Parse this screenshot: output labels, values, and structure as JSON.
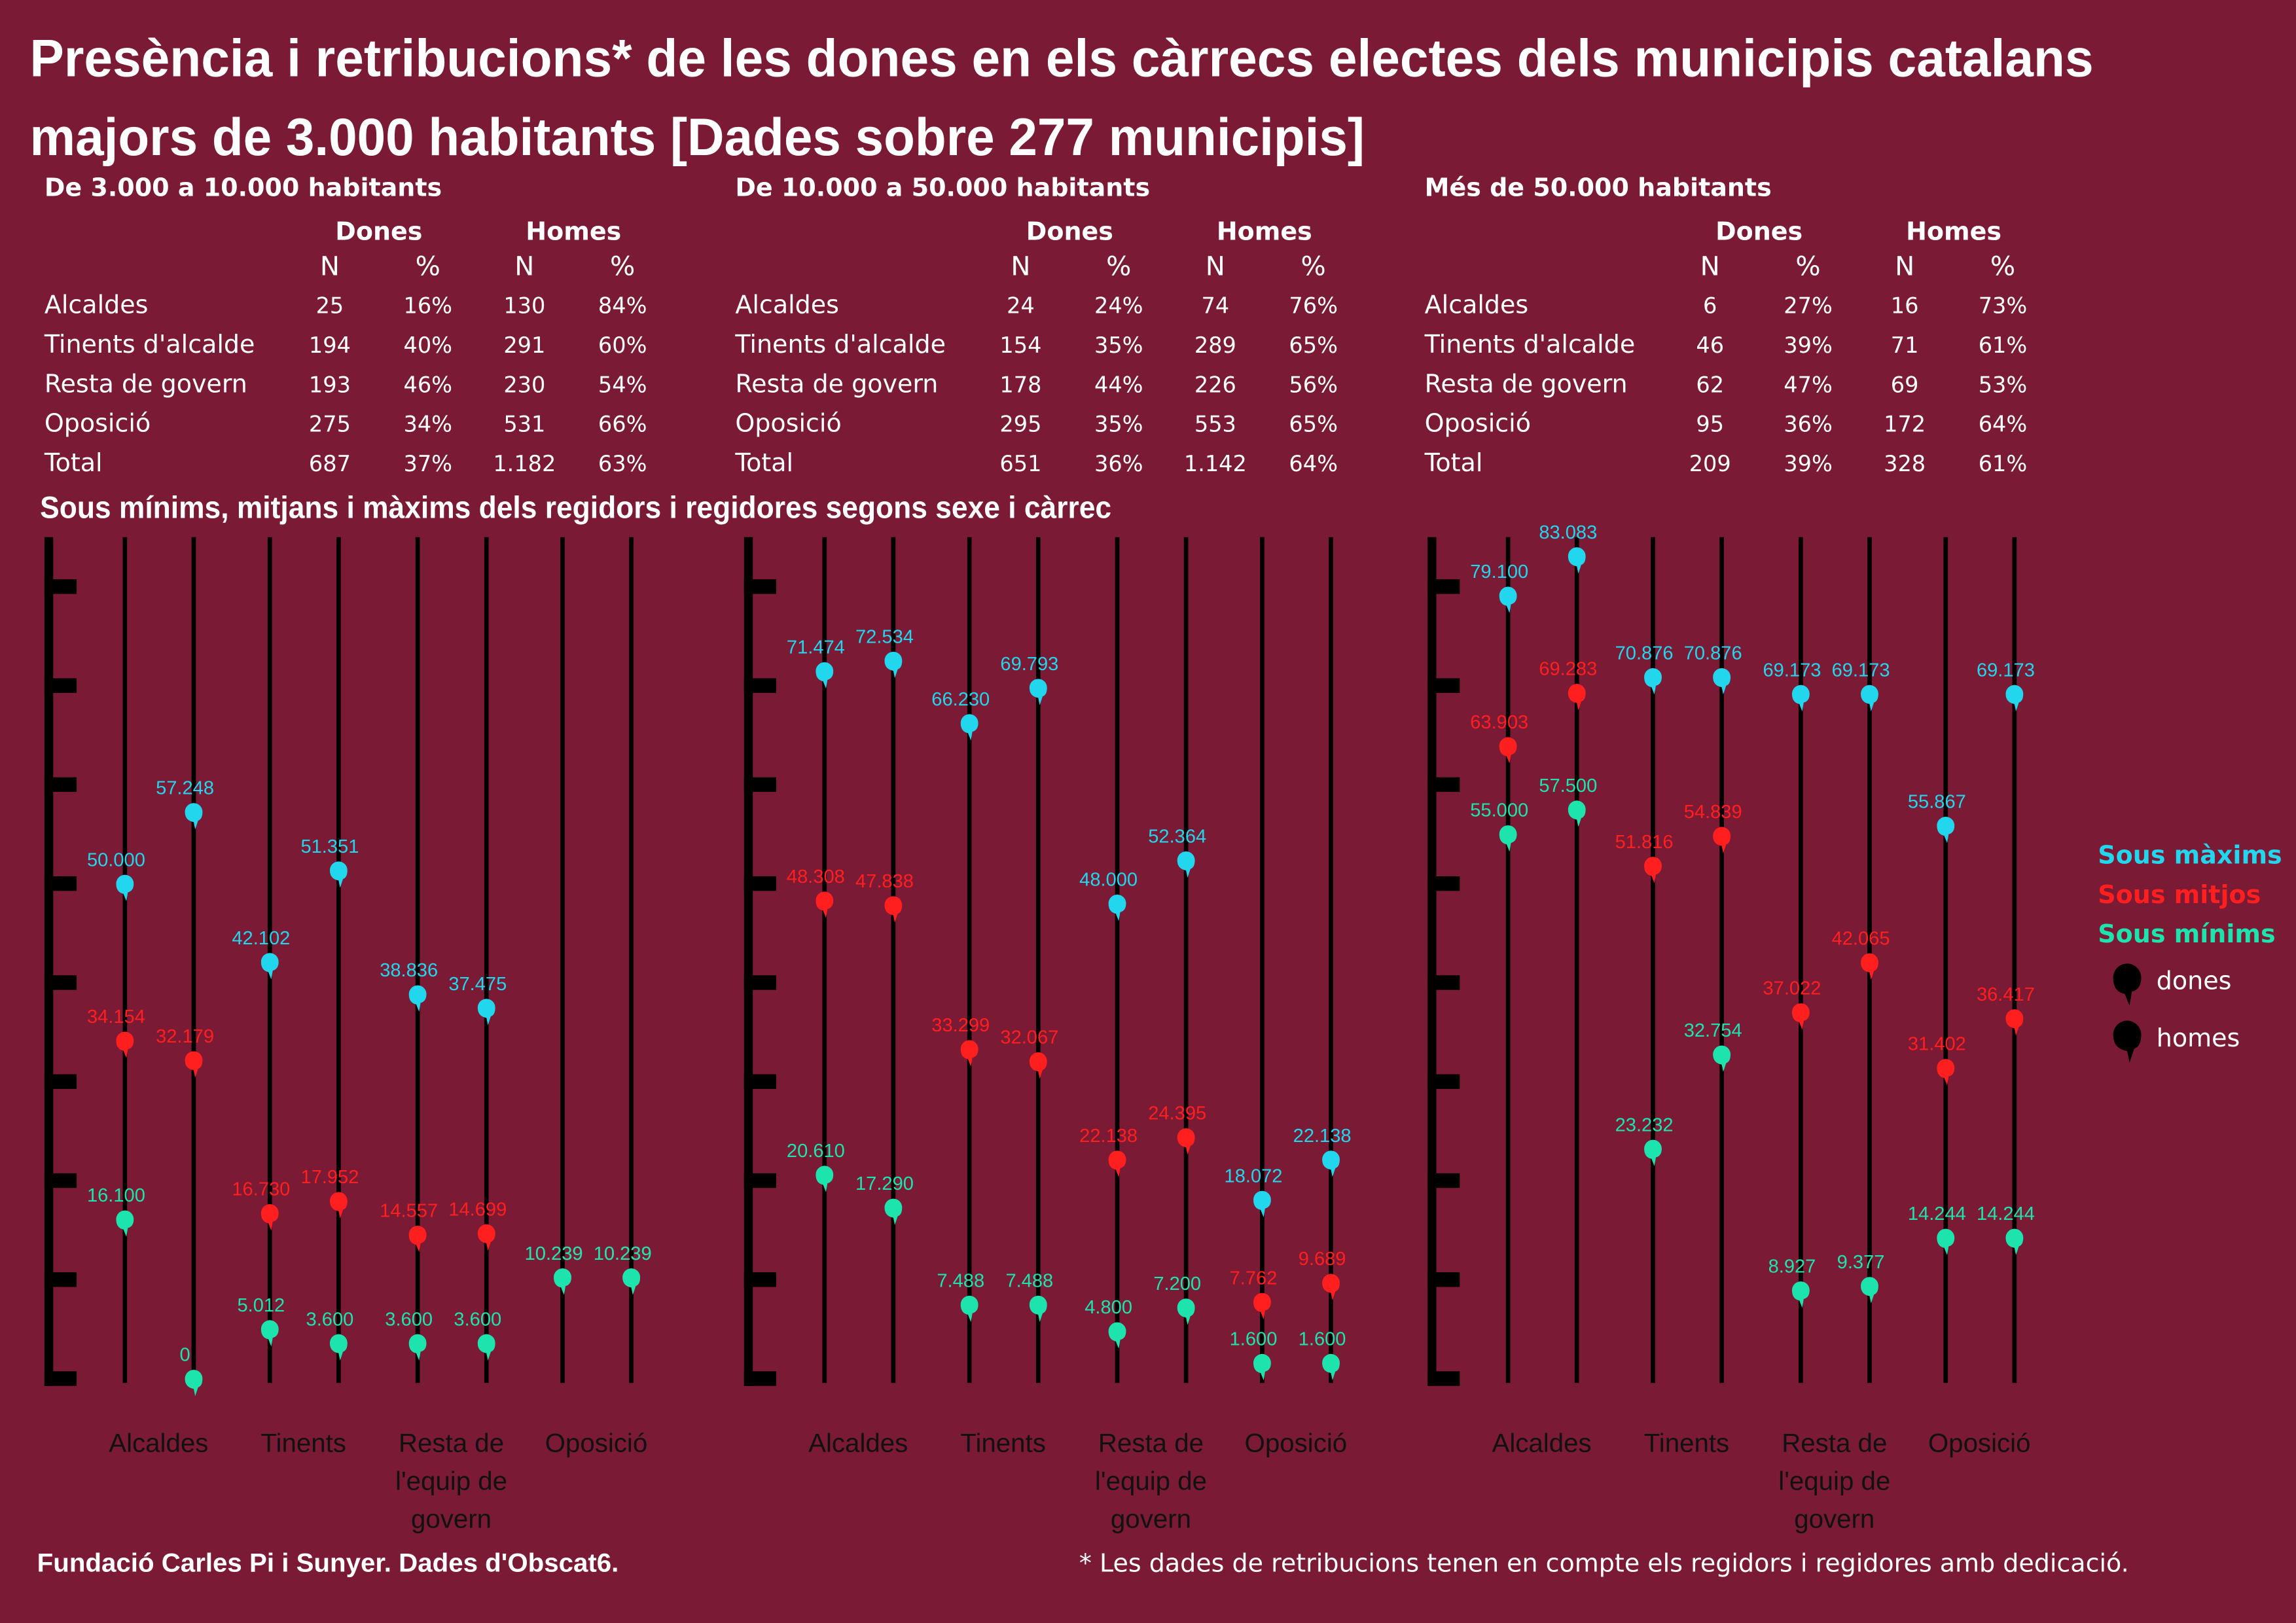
{
  "title": [
    "Presència i retribucions* de les dones en els càrrecs electes dels municipis catalans",
    "majors de 3.000 habitants [Dades sobre 277 municipis]"
  ],
  "tables": [
    {
      "heading": "De 3.000 a 10.000 habitants",
      "groups": [
        "Dones",
        "Homes"
      ],
      "columns": [
        "N",
        "%",
        "N",
        "%"
      ],
      "rows": [
        {
          "label": "Alcaldes",
          "cells": [
            "25",
            "16%",
            "130",
            "84%"
          ]
        },
        {
          "label": "Tinents d'alcalde",
          "cells": [
            "194",
            "40%",
            "291",
            "60%"
          ]
        },
        {
          "label": "Resta de govern",
          "cells": [
            "193",
            "46%",
            "230",
            "54%"
          ]
        },
        {
          "label": "Oposició",
          "cells": [
            "275",
            "34%",
            "531",
            "66%"
          ]
        },
        {
          "label": "Total",
          "cells": [
            "687",
            "37%",
            "1.182",
            "63%"
          ]
        }
      ]
    },
    {
      "heading": "De 10.000 a 50.000 habitants",
      "groups": [
        "Dones",
        "Homes"
      ],
      "columns": [
        "N",
        "%",
        "N",
        "%"
      ],
      "rows": [
        {
          "label": "Alcaldes",
          "cells": [
            "24",
            "24%",
            "74",
            "76%"
          ]
        },
        {
          "label": "Tinents d'alcalde",
          "cells": [
            "154",
            "35%",
            "289",
            "65%"
          ]
        },
        {
          "label": "Resta de govern",
          "cells": [
            "178",
            "44%",
            "226",
            "56%"
          ]
        },
        {
          "label": "Oposició",
          "cells": [
            "295",
            "35%",
            "553",
            "65%"
          ]
        },
        {
          "label": "Total",
          "cells": [
            "651",
            "36%",
            "1.142",
            "64%"
          ]
        }
      ]
    },
    {
      "heading": "Més de 50.000 habitants",
      "groups": [
        "Dones",
        "Homes"
      ],
      "columns": [
        "N",
        "%",
        "N",
        "%"
      ],
      "rows": [
        {
          "label": "Alcaldes",
          "cells": [
            "6",
            "27%",
            "16",
            "73%"
          ]
        },
        {
          "label": "Tinents d'alcalde",
          "cells": [
            "46",
            "39%",
            "71",
            "61%"
          ]
        },
        {
          "label": "Resta de govern",
          "cells": [
            "62",
            "47%",
            "69",
            "53%"
          ]
        },
        {
          "label": "Oposició",
          "cells": [
            "95",
            "36%",
            "172",
            "64%"
          ]
        },
        {
          "label": "Total",
          "cells": [
            "209",
            "39%",
            "328",
            "61%"
          ]
        }
      ]
    }
  ],
  "chart_data": {
    "type": "dot",
    "title": "Sous mínims, mitjans i màxims dels regidors i regidores segons sexe i càrrec",
    "categories": [
      "Alcaldes",
      "Tinents",
      "Resta de l'equip de govern",
      "Oposició"
    ],
    "sexes": [
      "dones",
      "homes"
    ],
    "ylim": [
      0,
      85000
    ],
    "yticks": [
      0,
      10000,
      20000,
      30000,
      40000,
      50000,
      60000,
      70000,
      80000
    ],
    "series": [
      {
        "name": "Sous màxims",
        "color": "#22d6ee",
        "values": [
          [
            [
              50000,
              57248
            ],
            [
              42102,
              51351
            ],
            [
              38836,
              37475
            ],
            [
              10239,
              10239
            ]
          ],
          [
            [
              71474,
              72534
            ],
            [
              66230,
              69793
            ],
            [
              48000,
              52364
            ],
            [
              18072,
              22138
            ]
          ],
          [
            [
              79100,
              83083
            ],
            [
              70876,
              70876
            ],
            [
              69173,
              69173
            ],
            [
              55867,
              69173
            ]
          ]
        ],
        "value_labels": [
          [
            [
              "50.000",
              "57.248"
            ],
            [
              "42.102",
              "51.351"
            ],
            [
              "38.836",
              "37.475"
            ],
            [
              "10.239",
              "10.239"
            ]
          ],
          [
            [
              "71.474",
              "72.534"
            ],
            [
              "66.230",
              "69.793"
            ],
            [
              "48.000",
              "52.364"
            ],
            [
              "18.072",
              "22.138"
            ]
          ],
          [
            [
              "79.100",
              "83.083"
            ],
            [
              "70.876",
              "70.876"
            ],
            [
              "69.173",
              "69.173"
            ],
            [
              "55.867",
              "69.173"
            ]
          ]
        ]
      },
      {
        "name": "Sous mitjos",
        "color": "#ff1f1f",
        "values": [
          [
            [
              34154,
              32179
            ],
            [
              16730,
              17952
            ],
            [
              14557,
              14699
            ],
            [
              10239,
              10239
            ]
          ],
          [
            [
              48308,
              47838
            ],
            [
              33299,
              32067
            ],
            [
              22138,
              24395
            ],
            [
              7762,
              9689
            ]
          ],
          [
            [
              63903,
              69283
            ],
            [
              51816,
              54839
            ],
            [
              37022,
              42065
            ],
            [
              31402,
              36417
            ]
          ]
        ],
        "value_labels": [
          [
            [
              "34.154",
              "32.179"
            ],
            [
              "16.730",
              "17.952"
            ],
            [
              "14.557",
              "14.699"
            ],
            [
              "10.239",
              "10.239"
            ]
          ],
          [
            [
              "48.308",
              "47.838"
            ],
            [
              "33.299",
              "32.067"
            ],
            [
              "22.138",
              "24.395"
            ],
            [
              "7.762",
              "9.689"
            ]
          ],
          [
            [
              "63.903",
              "69.283"
            ],
            [
              "51.816",
              "54.839"
            ],
            [
              "37.022",
              "42.065"
            ],
            [
              "31.402",
              "36.417"
            ]
          ]
        ]
      },
      {
        "name": "Sous mínims",
        "color": "#1de4ad",
        "values": [
          [
            [
              16100,
              0
            ],
            [
              5012,
              3600
            ],
            [
              3600,
              3600
            ],
            [
              10239,
              10239
            ]
          ],
          [
            [
              20610,
              17290
            ],
            [
              7488,
              7488
            ],
            [
              4800,
              7200
            ],
            [
              1600,
              1600
            ]
          ],
          [
            [
              55000,
              57500
            ],
            [
              23232,
              32754
            ],
            [
              8927,
              9377
            ],
            [
              14244,
              14244
            ]
          ]
        ],
        "value_labels": [
          [
            [
              "16.100",
              "0"
            ],
            [
              "5.012",
              "3.600"
            ],
            [
              "3.600",
              "3.600"
            ],
            [
              "10.239",
              "10.239"
            ]
          ],
          [
            [
              "20.610",
              "17.290"
            ],
            [
              "7.488",
              "7.488"
            ],
            [
              "4.800",
              "7.200"
            ],
            [
              "1.600",
              "1.600"
            ]
          ],
          [
            [
              "55.000",
              "57.500"
            ],
            [
              "23.232",
              "32.754"
            ],
            [
              "8.927",
              "9.377"
            ],
            [
              "14.244",
              "14.244"
            ]
          ]
        ]
      }
    ]
  },
  "source": "Fundació Carles Pi i Sunyer. Dades d'Obscat6.",
  "footnote": "* Les dades de retribucions tenen en compte els regidors i regidores amb dedicació."
}
